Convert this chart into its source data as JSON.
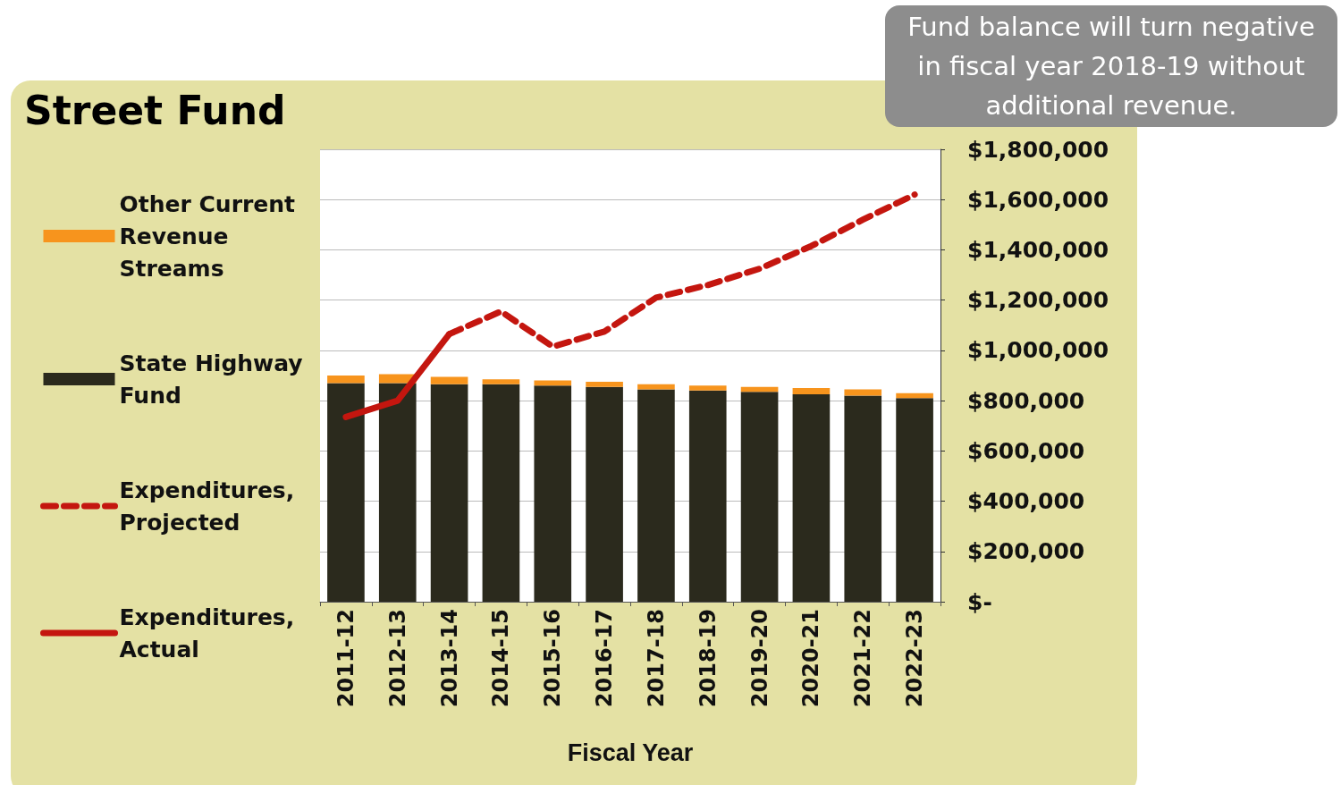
{
  "chart_data": {
    "type": "bar",
    "title": "Street Fund",
    "xlabel": "Fiscal Year",
    "annotations": [
      "Fund balance will turn negative in fiscal year 2018-19 without additional revenue."
    ],
    "categories": [
      "2011-12",
      "2012-13",
      "2013-14",
      "2014-15",
      "2015-16",
      "2016-17",
      "2017-18",
      "2018-19",
      "2019-20",
      "2020-21",
      "2021-22",
      "2022-23"
    ],
    "stacked": true,
    "series": [
      {
        "name": "State Highway Fund",
        "color": "#2b2a1d",
        "values": [
          870000,
          870000,
          865000,
          865000,
          860000,
          855000,
          845000,
          840000,
          835000,
          825000,
          820000,
          810000
        ]
      },
      {
        "name": "Other Current Revenue Streams",
        "color": "#f7941d",
        "values": [
          30000,
          35000,
          30000,
          20000,
          20000,
          20000,
          20000,
          20000,
          20000,
          25000,
          25000,
          20000
        ]
      },
      {
        "name": "Expenditures, Projected",
        "type": "line",
        "color": "#c4160f",
        "line_style": "dashed",
        "values": [
          null,
          null,
          1065000,
          1155000,
          1015000,
          1075000,
          1210000,
          1260000,
          1325000,
          1415000,
          1520000,
          1620000
        ]
      },
      {
        "name": "Expenditures, Actual",
        "type": "line",
        "color": "#c4160f",
        "line_style": "solid",
        "values": [
          735000,
          800000,
          1065000,
          null,
          null,
          null,
          null,
          null,
          null,
          null,
          null,
          null
        ]
      }
    ],
    "ylim": [
      0,
      1800000
    ],
    "yticks": [
      {
        "value": 0,
        "label": "$-"
      },
      {
        "value": 200000,
        "label": "$200,000"
      },
      {
        "value": 400000,
        "label": "$400,000"
      },
      {
        "value": 600000,
        "label": "$600,000"
      },
      {
        "value": 800000,
        "label": "$800,000"
      },
      {
        "value": 1000000,
        "label": "$1,000,000"
      },
      {
        "value": 1200000,
        "label": "$1,200,000"
      },
      {
        "value": 1400000,
        "label": "$1,400,000"
      },
      {
        "value": 1600000,
        "label": "$1,600,000"
      },
      {
        "value": 1800000,
        "label": "$1,800,000"
      }
    ],
    "grid": "y",
    "legend": "left",
    "marker": "none"
  }
}
